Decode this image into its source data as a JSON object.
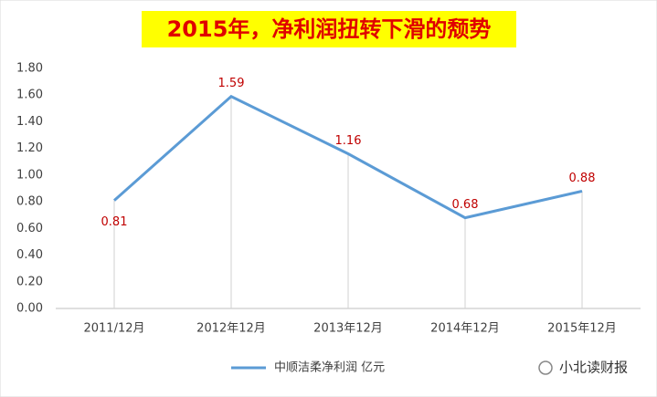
{
  "chart_data": {
    "type": "line",
    "title": "2015年，净利润扭转下滑的颓势",
    "categories": [
      "2011/12月",
      "2012年12月",
      "2013年12月",
      "2014年12月",
      "2015年12月"
    ],
    "series": [
      {
        "name": "中顺洁柔净利润 亿元",
        "color": "#5b9bd5",
        "values": [
          0.81,
          1.59,
          1.16,
          0.68,
          0.88
        ]
      }
    ],
    "ylim": [
      0,
      1.8
    ],
    "yticks": [
      {
        "value": 0,
        "label": "0.00"
      },
      {
        "value": 0.2,
        "label": "0.20"
      },
      {
        "value": 0.4,
        "label": "0.40"
      },
      {
        "value": 0.6,
        "label": "0.60"
      },
      {
        "value": 0.8,
        "label": "0.80"
      },
      {
        "value": 1.0,
        "label": "1.00"
      },
      {
        "value": 1.2,
        "label": "1.20"
      },
      {
        "value": 1.4,
        "label": "1.40"
      },
      {
        "value": 1.6,
        "label": "1.60"
      },
      {
        "value": 1.8,
        "label": "1.80"
      }
    ],
    "grid": false,
    "legend": "bottom",
    "label_color": "#c00000",
    "watermark": "小北读财报"
  }
}
